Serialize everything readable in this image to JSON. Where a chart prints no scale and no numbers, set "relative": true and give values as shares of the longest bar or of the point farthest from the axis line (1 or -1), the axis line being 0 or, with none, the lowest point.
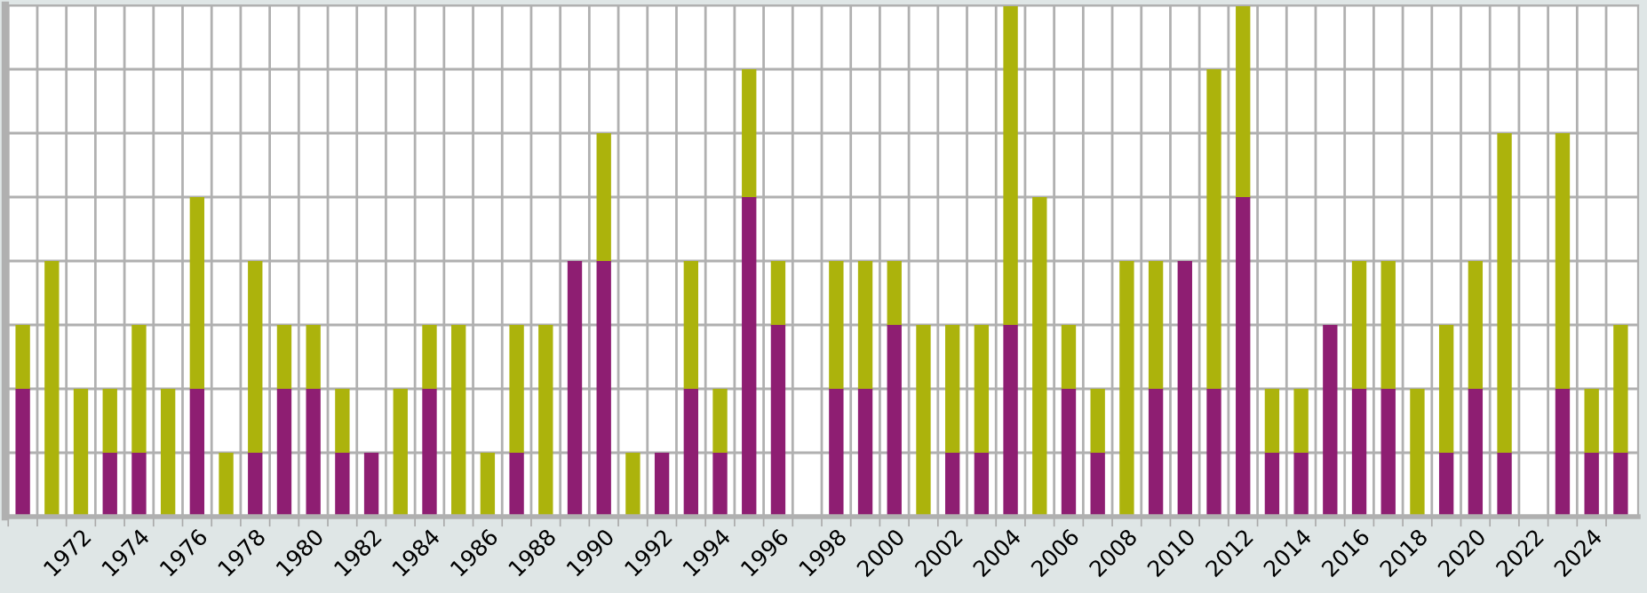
{
  "chart_data": {
    "type": "bar",
    "stacked": true,
    "relative": true,
    "grid": true,
    "legend": false,
    "categories": [
      null,
      null,
      "1972",
      null,
      "1974",
      null,
      "1976",
      null,
      "1978",
      null,
      "1980",
      null,
      "1982",
      null,
      "1984",
      null,
      "1986",
      null,
      "1988",
      null,
      "1990",
      null,
      "1992",
      null,
      "1994",
      null,
      "1996",
      null,
      "1998",
      null,
      "2000",
      null,
      "2002",
      null,
      "2004",
      null,
      "2006",
      null,
      "2008",
      null,
      "2010",
      null,
      "2012",
      null,
      "2014",
      null,
      "2016",
      null,
      "2018",
      null,
      "2020",
      null,
      "2022",
      null,
      "2024",
      null
    ],
    "series": [
      {
        "color": "#8e1e72",
        "values": [
          0.25,
          0,
          0,
          0.125,
          0.125,
          0,
          0.25,
          0,
          0.125,
          0.25,
          0.25,
          0.125,
          0.125,
          0,
          0.25,
          0,
          0,
          0.125,
          0,
          0.5,
          0.5,
          0,
          0.125,
          0.25,
          0.125,
          0.625,
          0.375,
          0,
          0.25,
          0.25,
          0.375,
          0,
          0.125,
          0.125,
          0.375,
          0,
          0.25,
          0.125,
          0,
          0.25,
          0.5,
          0.25,
          0.625,
          0.125,
          0.125,
          0.375,
          0.25,
          0.25,
          0,
          0.125,
          0.25,
          0.125,
          0,
          0.25,
          0.125,
          0.125
        ]
      },
      {
        "color": "#acb30c",
        "values": [
          0.125,
          0.5,
          0.25,
          0.125,
          0.25,
          0.25,
          0.375,
          0.125,
          0.375,
          0.125,
          0.125,
          0.125,
          0,
          0.25,
          0.125,
          0.375,
          0.125,
          0.25,
          0.375,
          0,
          0.25,
          0.125,
          0,
          0.25,
          0.125,
          0.25,
          0.125,
          0,
          0.25,
          0.25,
          0.125,
          0.375,
          0.25,
          0.25,
          0.625,
          0.625,
          0.125,
          0.125,
          0.5,
          0.25,
          0,
          0.625,
          0.375,
          0.125,
          0.125,
          0,
          0.25,
          0.25,
          0.25,
          0.25,
          0.25,
          0.625,
          0,
          0.5,
          0.125,
          0.25
        ]
      }
    ]
  }
}
